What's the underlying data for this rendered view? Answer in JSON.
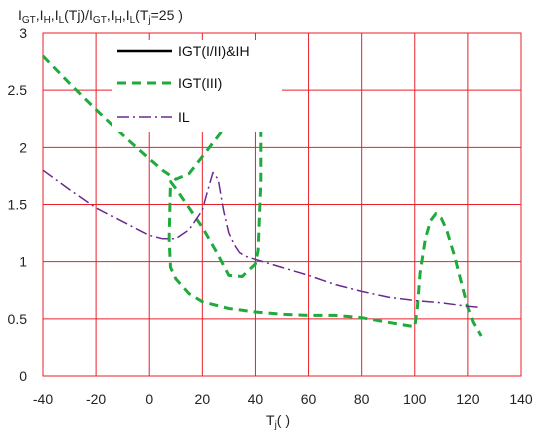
{
  "chart_data": {
    "type": "line",
    "title_parts": {
      "I1": "I",
      "s1": "GT",
      "c1": ",",
      "I2": "I",
      "s2": "H",
      "c2": ",",
      "I3": "I",
      "s3": "L",
      "mid": "(Tj)/",
      "I4": "I",
      "s4": "GT",
      "c3": ",",
      "I5": "I",
      "s5": "H",
      "c4": ",",
      "I6": "I",
      "s6": "L",
      "open": "(T",
      "s7": "j",
      "tail": "=25      )"
    },
    "xlabel_parts": {
      "main": "T",
      "sub": "j",
      "tail": "(      )"
    },
    "xlim": [
      -40,
      140
    ],
    "ylim": [
      0,
      3
    ],
    "xticks": [
      "-40",
      "-20",
      "0",
      "20",
      "40",
      "60",
      "80",
      "100",
      "120",
      "140"
    ],
    "yticks": [
      "0",
      "0.5",
      "1",
      "1.5",
      "2",
      "2.5",
      "3"
    ],
    "grid": true,
    "grid_color": "#e8202a",
    "legend_position": "top-center",
    "series": [
      {
        "name": "IGT(I/II)&IH",
        "color": "#000000",
        "style": "solid",
        "x": [],
        "y": []
      },
      {
        "name": "IGT(III)",
        "color": "#1faa3c",
        "style": "dashed",
        "x": [
          -40,
          -30,
          -20,
          -10,
          0,
          5,
          10,
          15,
          20,
          25,
          27,
          30,
          32,
          35,
          38,
          40,
          41,
          42,
          42,
          41,
          40,
          35,
          30,
          25,
          20,
          15,
          10,
          8,
          7.5,
          8,
          10,
          15,
          20,
          30,
          40,
          50,
          60,
          70,
          80,
          90,
          100,
          101,
          102,
          104,
          106,
          108,
          110,
          112,
          115,
          118,
          120,
          122,
          125
        ],
        "y": [
          2.8,
          2.56,
          2.33,
          2.11,
          1.9,
          1.8,
          1.72,
          1.77,
          1.92,
          2.07,
          2.13,
          2.22,
          2.28,
          2.38,
          2.49,
          2.58,
          2.65,
          2.64,
          1.7,
          1.1,
          0.98,
          0.87,
          0.88,
          1.1,
          1.3,
          1.47,
          1.64,
          1.7,
          1.2,
          0.95,
          0.85,
          0.72,
          0.65,
          0.59,
          0.56,
          0.54,
          0.53,
          0.53,
          0.51,
          0.47,
          0.43,
          0.6,
          0.9,
          1.2,
          1.36,
          1.42,
          1.38,
          1.28,
          1.05,
          0.78,
          0.6,
          0.47,
          0.35
        ]
      },
      {
        "name": "IL",
        "color": "#6b2a8f",
        "style": "dashdot",
        "x": [
          -40,
          -30,
          -20,
          -10,
          0,
          5,
          10,
          15,
          20,
          22,
          24,
          26,
          28,
          30,
          32,
          34,
          36,
          40,
          50,
          60,
          70,
          80,
          90,
          100,
          110,
          120,
          125
        ],
        "y": [
          1.8,
          1.63,
          1.47,
          1.35,
          1.23,
          1.2,
          1.2,
          1.28,
          1.45,
          1.62,
          1.78,
          1.72,
          1.45,
          1.25,
          1.15,
          1.08,
          1.05,
          1.02,
          0.95,
          0.88,
          0.8,
          0.74,
          0.69,
          0.66,
          0.64,
          0.61,
          0.6
        ]
      }
    ]
  }
}
